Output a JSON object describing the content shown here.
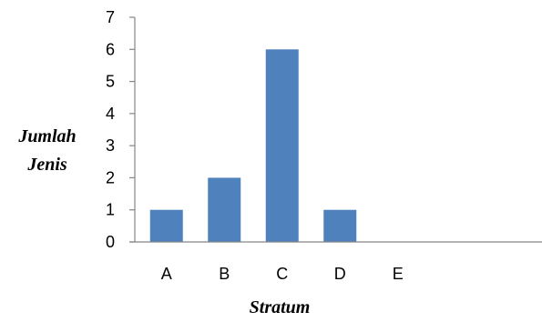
{
  "chart_data": {
    "type": "bar",
    "categories": [
      "A",
      "B",
      "C",
      "D",
      "E"
    ],
    "values": [
      1,
      2,
      6,
      1,
      0
    ],
    "xlabel": "Stratum",
    "ylabel_lines": [
      "Jumlah",
      "Jenis"
    ],
    "ylim": [
      0,
      7
    ],
    "yticks": [
      0,
      1,
      2,
      3,
      4,
      5,
      6,
      7
    ],
    "grid": false,
    "legend": "none",
    "bar_color": "#4f81bd",
    "axis_color": "#868686"
  }
}
